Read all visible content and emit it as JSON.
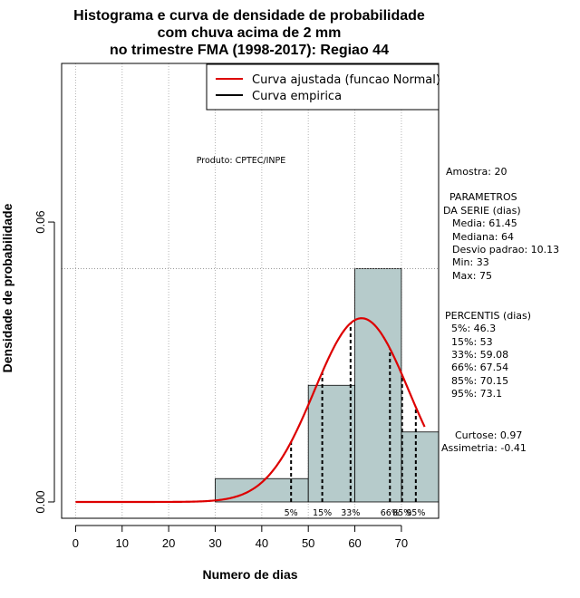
{
  "chart_data": {
    "type": "bar",
    "title": [
      "Histograma e curva de densidade de probabilidade",
      "com chuva acima de 2 mm",
      "no trimestre FMA (1998-2017): Regiao 44"
    ],
    "xlabel": "Numero de dias",
    "ylabel": "Densidade de probabilidade",
    "xlim": [
      -3,
      78
    ],
    "ylim": [
      -0.0035,
      0.094
    ],
    "x_ticks": [
      0,
      10,
      20,
      30,
      40,
      50,
      60,
      70
    ],
    "y_ticks": [
      {
        "value": 0.0,
        "label": "0.00"
      },
      {
        "value": 0.06,
        "label": "0.06"
      }
    ],
    "bars": [
      {
        "x0": 30,
        "x1": 50,
        "density": 0.005
      },
      {
        "x0": 50,
        "x1": 60,
        "density": 0.025
      },
      {
        "x0": 60,
        "x1": 70,
        "density": 0.05
      },
      {
        "x0": 70,
        "x1": 78,
        "density": 0.015
      }
    ],
    "fitted_normal": {
      "mean": 61.45,
      "sd": 10.13,
      "x_range": [
        0,
        75
      ],
      "color": "#dd0000"
    },
    "percentiles": [
      {
        "label": "5%",
        "value": 46.3
      },
      {
        "label": "15%",
        "value": 53
      },
      {
        "label": "33%",
        "value": 59.08
      },
      {
        "label": "66%",
        "value": 67.54
      },
      {
        "label": "85%",
        "value": 70.15
      },
      {
        "label": "95%",
        "value": 73.1
      }
    ],
    "hline_density": 0.05,
    "legend": [
      {
        "label": "Curva ajustada (funcao Normal)",
        "color": "#dd0000"
      },
      {
        "label": "Curva empirica",
        "color": "#000000"
      }
    ],
    "bar_color": "#b6cbcb",
    "product_note": "Produto: CPTEC/INPE"
  },
  "stats_panel": {
    "sample": "Amostra: 20",
    "params_header": [
      "PARAMETROS",
      "DA SERIE (dias)"
    ],
    "params": [
      "Media: 61.45",
      "Mediana: 64",
      "Desvio padrao: 10.13",
      "Min: 33",
      "Max: 75"
    ],
    "percentis_header": "PERCENTIS (dias)",
    "percentis": [
      "5%: 46.3",
      "15%: 53",
      "33%: 59.08",
      "66%: 67.54",
      "85%: 70.15",
      "95%: 73.1"
    ],
    "shape": [
      "Curtose: 0.97",
      "Assimetria: -0.41"
    ]
  }
}
